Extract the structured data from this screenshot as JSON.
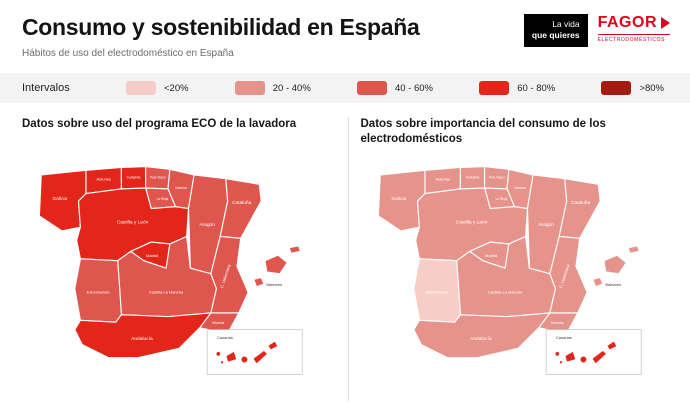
{
  "header": {
    "title": "Consumo y sostenibilidad en España",
    "subtitle": "Hábitos de uso del electrodoméstico en España",
    "tagline_line1": "La vida",
    "tagline_line2": "que quieres",
    "brand": "FAGOR",
    "brand_sub": "ELECTRODOMÉSTICOS"
  },
  "legend": {
    "label": "Intervalos",
    "items": [
      {
        "label": "<20%",
        "color": "#f7cdc7"
      },
      {
        "label": "20 - 40%",
        "color": "#e6938c"
      },
      {
        "label": "40 - 60%",
        "color": "#df564e"
      },
      {
        "label": "60 - 80%",
        "color": "#e4261a"
      },
      {
        "label": ">80%",
        "color": "#a31b10"
      }
    ]
  },
  "region_names": {
    "galicia": "Galicia",
    "asturias": "Asturias",
    "cantabria": "Cantabria",
    "pais_vasco": "País Vasco",
    "navarra": "Navarra",
    "la_rioja": "La Rioja",
    "castilla_y_leon": "Castilla y León",
    "aragon": "Aragón",
    "cataluna": "Cataluña",
    "madrid": "Madrid",
    "castilla_la_mancha": "Castilla-La Mancha",
    "valenciana": "C. Valenciana",
    "extremadura": "Extremadura",
    "murcia": "Murcia",
    "andalucia": "Andalucía",
    "baleares": "Baleares",
    "canarias": "Canarias"
  },
  "chart_data": [
    {
      "type": "choropleth",
      "title": "Datos sobre uso del programa ECO de la lavadora",
      "legend_intervals": [
        "<20%",
        "20 - 40%",
        "40 - 60%",
        "60 - 80%",
        ">80%"
      ],
      "regions": {
        "galicia": "60 - 80%",
        "asturias": "60 - 80%",
        "cantabria": "60 - 80%",
        "pais_vasco": "40 - 60%",
        "navarra": "40 - 60%",
        "la_rioja": "40 - 60%",
        "castilla_y_leon": "60 - 80%",
        "aragon": "40 - 60%",
        "cataluna": "40 - 60%",
        "madrid": "60 - 80%",
        "castilla_la_mancha": "40 - 60%",
        "valenciana": "40 - 60%",
        "extremadura": "40 - 60%",
        "murcia": "40 - 60%",
        "andalucia": "60 - 80%",
        "baleares": "40 - 60%",
        "canarias": "60 - 80%"
      }
    },
    {
      "type": "choropleth",
      "title": "Datos sobre importancia del consumo de los electrodomésticos",
      "legend_intervals": [
        "<20%",
        "20 - 40%",
        "40 - 60%",
        "60 - 80%",
        ">80%"
      ],
      "regions": {
        "galicia": "20 - 40%",
        "asturias": "20 - 40%",
        "cantabria": "20 - 40%",
        "pais_vasco": "20 - 40%",
        "navarra": "20 - 40%",
        "la_rioja": "20 - 40%",
        "castilla_y_leon": "20 - 40%",
        "aragon": "20 - 40%",
        "cataluna": "20 - 40%",
        "madrid": "20 - 40%",
        "castilla_la_mancha": "20 - 40%",
        "valenciana": "20 - 40%",
        "extremadura": "<20%",
        "murcia": "20 - 40%",
        "andalucia": "20 - 40%",
        "baleares": "20 - 40%",
        "canarias": "60 - 80%"
      }
    }
  ]
}
